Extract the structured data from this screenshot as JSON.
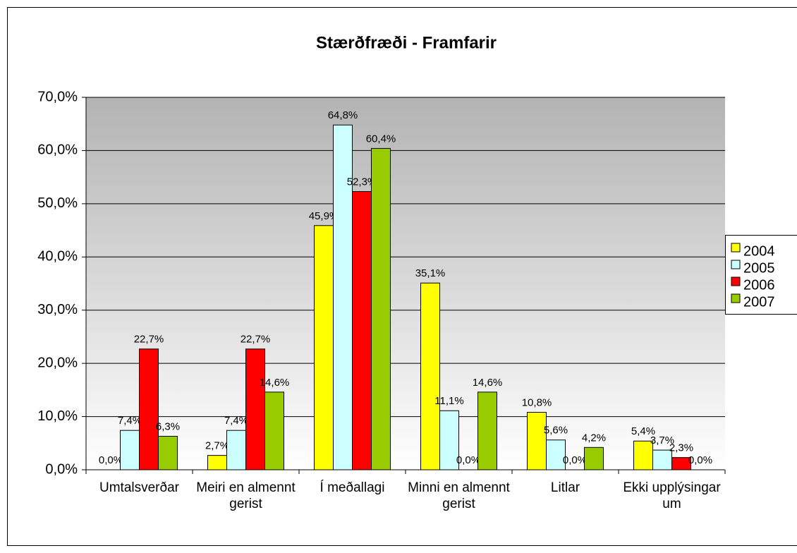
{
  "chart_data": {
    "type": "bar",
    "title": "Stærðfræði - Framfarir",
    "categories": [
      "Umtalsverðar",
      "Meiri en almennt gerist",
      "Í meðallagi",
      "Minni en almennt gerist",
      "Litlar",
      "Ekki upplýsingar um"
    ],
    "series": [
      {
        "name": "2004",
        "color": "#ffff00",
        "values": [
          0,
          2.7,
          45.9,
          35.1,
          10.8,
          5.4
        ],
        "value_labels": [
          "0,0%",
          "2,7%",
          "45,9%",
          "35,1%",
          "10,8%",
          "5,4%"
        ]
      },
      {
        "name": "2005",
        "color": "#ccffff",
        "values": [
          7.4,
          7.4,
          64.8,
          11.1,
          5.6,
          3.7
        ],
        "value_labels": [
          "7,4%",
          "7,4%",
          "64,8%",
          "11,1%",
          "5,6%",
          "3,7%"
        ]
      },
      {
        "name": "2006",
        "color": "#ff0000",
        "values": [
          22.7,
          22.7,
          52.3,
          0,
          0,
          2.3
        ],
        "value_labels": [
          "22,7%",
          "22,7%",
          "52,3%",
          "0,0%",
          "0,0%",
          "2,3%"
        ]
      },
      {
        "name": "2007",
        "color": "#99cc00",
        "values": [
          6.3,
          14.6,
          60.4,
          14.6,
          4.2,
          0
        ],
        "value_labels": [
          "6,3%",
          "14,6%",
          "60,4%",
          "14,6%",
          "4,2%",
          "0,0%"
        ]
      }
    ],
    "ylim": [
      0,
      70
    ],
    "yticks": [
      {
        "value": 0,
        "label": "0,0%"
      },
      {
        "value": 10,
        "label": "10,0%"
      },
      {
        "value": 20,
        "label": "20,0%"
      },
      {
        "value": 30,
        "label": "30,0%"
      },
      {
        "value": 40,
        "label": "40,0%"
      },
      {
        "value": 50,
        "label": "50,0%"
      },
      {
        "value": 60,
        "label": "60,0%"
      },
      {
        "value": 70,
        "label": "70,0%"
      }
    ],
    "grid": true,
    "legend": "right"
  }
}
